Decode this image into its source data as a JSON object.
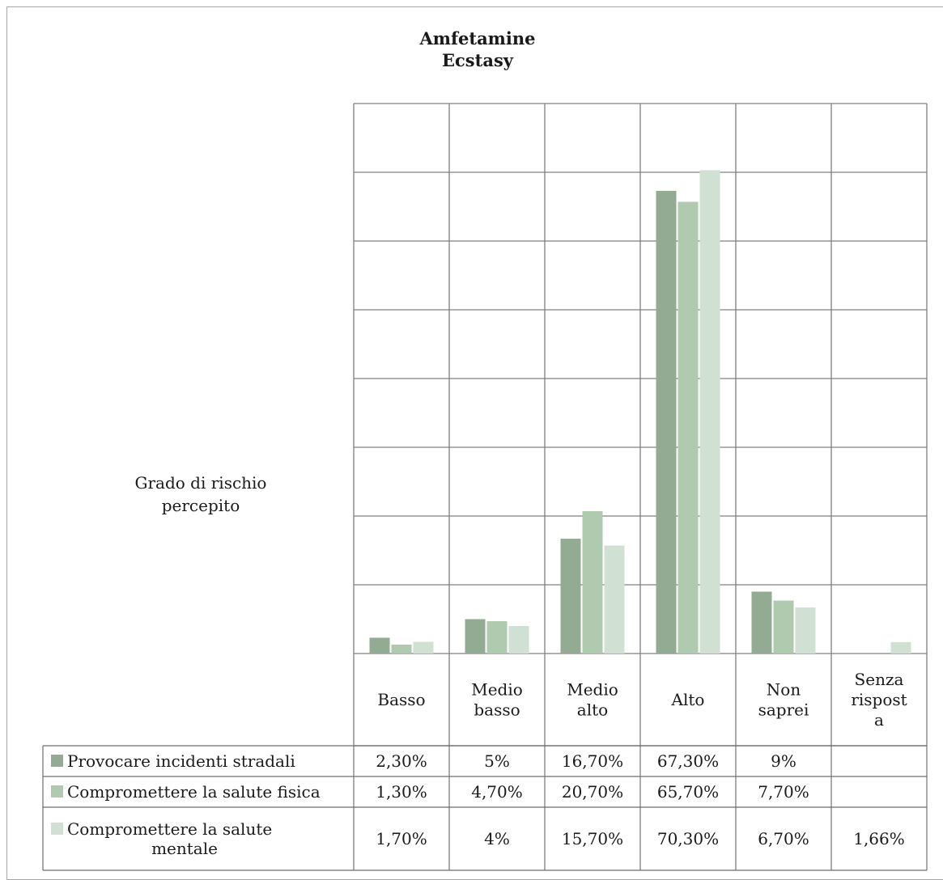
{
  "chart_data": {
    "type": "bar",
    "title": [
      "Amfetamine",
      "Ecstasy"
    ],
    "ylabel": [
      "Grado di rischio",
      "percepito"
    ],
    "ylim": [
      0,
      80
    ],
    "y_grid_step": 10,
    "grid": true,
    "legend_placement": "table-left",
    "categories": [
      [
        "Basso"
      ],
      [
        "Medio",
        "basso"
      ],
      [
        "Medio",
        "alto"
      ],
      [
        "Alto"
      ],
      [
        "Non",
        "saprei"
      ],
      [
        "Senza",
        "rispost",
        "a"
      ]
    ],
    "series": [
      {
        "name": [
          "Provocare incidenti stradali"
        ],
        "color": "#93ab93",
        "values": [
          2.3,
          5,
          16.7,
          67.3,
          9,
          null
        ],
        "labels": [
          "2,30%",
          "5%",
          "16,70%",
          "67,30%",
          "9%",
          ""
        ]
      },
      {
        "name": [
          "Compromettere la salute fisica"
        ],
        "color": "#afcaaf",
        "values": [
          1.3,
          4.7,
          20.7,
          65.7,
          7.7,
          null
        ],
        "labels": [
          "1,30%",
          "4,70%",
          "20,70%",
          "65,70%",
          "7,70%",
          ""
        ]
      },
      {
        "name": [
          "Compromettere la salute",
          "mentale"
        ],
        "color": "#d0e0d3",
        "values": [
          1.7,
          4,
          15.7,
          70.3,
          6.7,
          1.66
        ],
        "labels": [
          "1,70%",
          "4%",
          "15,70%",
          "70,30%",
          "6,70%",
          "1,66%"
        ]
      }
    ]
  }
}
